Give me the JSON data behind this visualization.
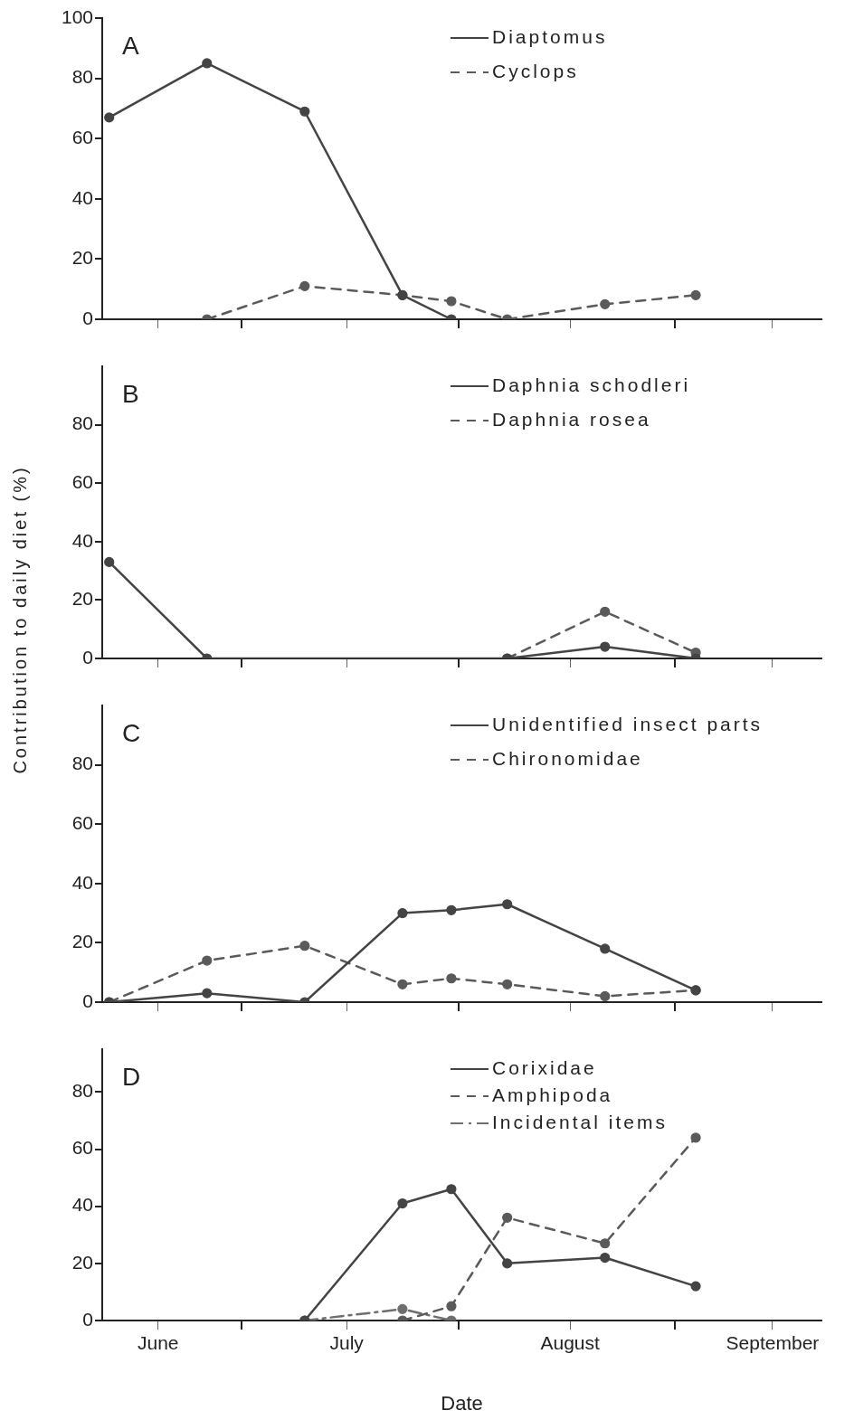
{
  "chart_data": [
    {
      "type": "line",
      "annotations": [
        "A"
      ],
      "legend": "top right",
      "grid": false,
      "marker": "circle",
      "tick_labels": "y",
      "xlim": [
        "--06-11",
        "--09-22"
      ],
      "ylim": [
        0,
        100
      ],
      "yticks": [
        0,
        20,
        40,
        60,
        80,
        100
      ],
      "xticks": [
        {
          "value": "--06-19",
          "label": "June"
        },
        {
          "value": "--07-01",
          "label": null
        },
        {
          "value": "--07-16",
          "label": "July"
        },
        {
          "value": "--08-01",
          "label": null
        },
        {
          "value": "--08-17",
          "label": "August"
        },
        {
          "value": "--09-01",
          "label": null
        },
        {
          "value": "--09-15",
          "label": "September"
        }
      ],
      "series": [
        {
          "name": "Diaptomus",
          "color": "#444444",
          "line_style": "solid",
          "x": [
            "--06-12",
            "--06-26",
            "--07-10",
            "--07-24",
            "--07-31"
          ],
          "values": [
            67,
            85,
            69,
            8,
            0
          ]
        },
        {
          "name": "Cyclops",
          "color": "#5a5a5a",
          "line_style": "dashed",
          "x": [
            "--06-26",
            "--07-10",
            "--07-24",
            "--07-31",
            "--08-08",
            "--08-22",
            "--09-04"
          ],
          "values": [
            0,
            11,
            8,
            6,
            0,
            5,
            8
          ]
        }
      ]
    },
    {
      "type": "line",
      "annotations": [
        "B"
      ],
      "legend": "top right",
      "grid": false,
      "marker": "circle",
      "tick_labels": "y",
      "ylabel": "Contribution to daily diet (%)",
      "xlim": [
        "--06-11",
        "--09-22"
      ],
      "ylim": [
        0,
        100
      ],
      "yticks": [
        0,
        20,
        40,
        60,
        80
      ],
      "xticks": [
        {
          "value": "--06-19",
          "label": "June"
        },
        {
          "value": "--07-01",
          "label": null
        },
        {
          "value": "--07-16",
          "label": "July"
        },
        {
          "value": "--08-01",
          "label": null
        },
        {
          "value": "--08-17",
          "label": "August"
        },
        {
          "value": "--09-01",
          "label": null
        },
        {
          "value": "--09-15",
          "label": "September"
        }
      ],
      "series": [
        {
          "name": "Daphnia schodleri",
          "color": "#444444",
          "line_style": "solid",
          "x": [
            "--06-12",
            "--06-26",
            "--08-08",
            "--08-22",
            "--09-04"
          ],
          "values": [
            33,
            0,
            0,
            4,
            0
          ]
        },
        {
          "name": "Daphnia rosea",
          "color": "#5a5a5a",
          "line_style": "dashed",
          "x": [
            "--08-08",
            "--08-22",
            "--09-04"
          ],
          "values": [
            0,
            16,
            2
          ]
        }
      ]
    },
    {
      "type": "line",
      "annotations": [
        "C"
      ],
      "legend": "top right",
      "grid": false,
      "marker": "circle",
      "tick_labels": "y",
      "xlim": [
        "--06-11",
        "--09-22"
      ],
      "ylim": [
        0,
        100
      ],
      "yticks": [
        0,
        20,
        40,
        60,
        80
      ],
      "xticks": [
        {
          "value": "--06-19",
          "label": "June"
        },
        {
          "value": "--07-01",
          "label": null
        },
        {
          "value": "--07-16",
          "label": "July"
        },
        {
          "value": "--08-01",
          "label": null
        },
        {
          "value": "--08-17",
          "label": "August"
        },
        {
          "value": "--09-01",
          "label": null
        },
        {
          "value": "--09-15",
          "label": "September"
        }
      ],
      "series": [
        {
          "name": "Unidentified insect parts",
          "color": "#444444",
          "line_style": "solid",
          "x": [
            "--06-12",
            "--06-26",
            "--07-10",
            "--07-24",
            "--07-31",
            "--08-08",
            "--08-22",
            "--09-04"
          ],
          "values": [
            0,
            3,
            0,
            30,
            31,
            33,
            18,
            4
          ]
        },
        {
          "name": "Chironomidae",
          "color": "#5a5a5a",
          "line_style": "dashed",
          "x": [
            "--06-12",
            "--06-26",
            "--07-10",
            "--07-24",
            "--07-31",
            "--08-08",
            "--08-22",
            "--09-04"
          ],
          "values": [
            0,
            14,
            19,
            6,
            8,
            6,
            2,
            4
          ]
        }
      ]
    },
    {
      "type": "line",
      "annotations": [
        "D"
      ],
      "legend": "top right",
      "grid": false,
      "marker": "circle",
      "xlabel": "Date",
      "xlim": [
        "--06-11",
        "--09-22"
      ],
      "ylim": [
        0,
        95
      ],
      "yticks": [
        0,
        20,
        40,
        60,
        80
      ],
      "xticks": [
        {
          "value": "--06-19",
          "label": "June"
        },
        {
          "value": "--07-01",
          "label": null
        },
        {
          "value": "--07-16",
          "label": "July"
        },
        {
          "value": "--08-01",
          "label": null
        },
        {
          "value": "--08-17",
          "label": "August"
        },
        {
          "value": "--09-01",
          "label": null
        },
        {
          "value": "--09-15",
          "label": "September"
        }
      ],
      "series": [
        {
          "name": "Corixidae",
          "color": "#444444",
          "line_style": "solid",
          "x": [
            "--07-10",
            "--07-24",
            "--07-31",
            "--08-08",
            "--08-22",
            "--09-04"
          ],
          "values": [
            0,
            41,
            46,
            20,
            22,
            12
          ]
        },
        {
          "name": "Amphipoda",
          "color": "#5a5a5a",
          "line_style": "dashed",
          "x": [
            "--07-24",
            "--07-31",
            "--08-08",
            "--08-22",
            "--09-04"
          ],
          "values": [
            0,
            5,
            36,
            27,
            64
          ]
        },
        {
          "name": "Incidental items",
          "color": "#6e6e6e",
          "line_style": "dashdot",
          "x": [
            "--07-10",
            "--07-24",
            "--07-31"
          ],
          "values": [
            0,
            4,
            0
          ]
        }
      ]
    }
  ]
}
